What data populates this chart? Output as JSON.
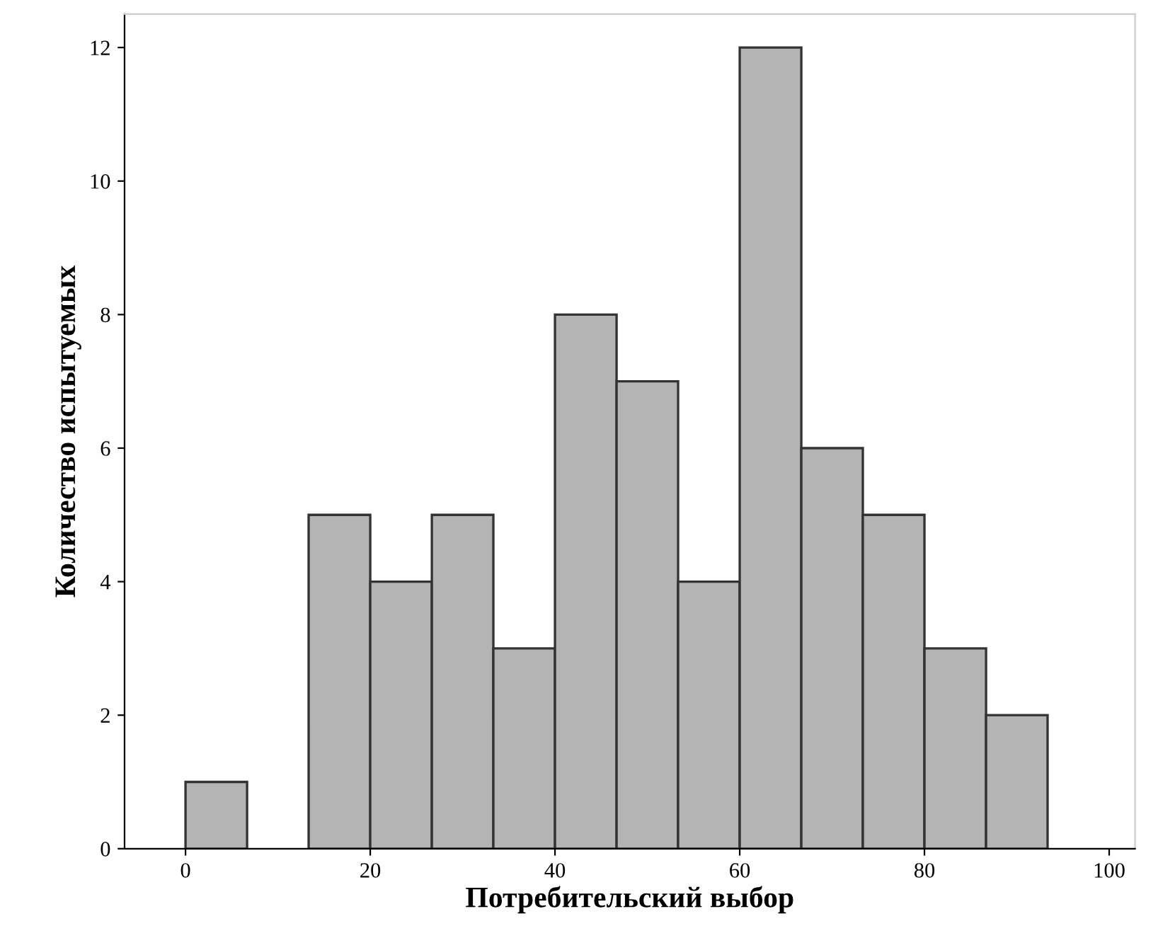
{
  "chart_data": {
    "type": "histogram",
    "xlabel": "Потребительский выбор",
    "ylabel": "Количество испытуемых",
    "bins": [
      0,
      6.667,
      13.33,
      20,
      26.67,
      33.33,
      40,
      46.67,
      53.33,
      60,
      66.67,
      73.33,
      80,
      86.67,
      93.33
    ],
    "values": [
      1,
      0,
      5,
      4,
      5,
      3,
      8,
      7,
      4,
      12,
      6,
      5,
      3,
      2
    ],
    "color": "#b4b4b4",
    "xlim": [
      -6.6,
      102.8
    ],
    "xticks": [
      0,
      20,
      40,
      60,
      80,
      100
    ],
    "ylim": [
      0,
      12.5
    ],
    "yticks": [
      0,
      2,
      4,
      6,
      8,
      10,
      12
    ],
    "grid": false
  }
}
